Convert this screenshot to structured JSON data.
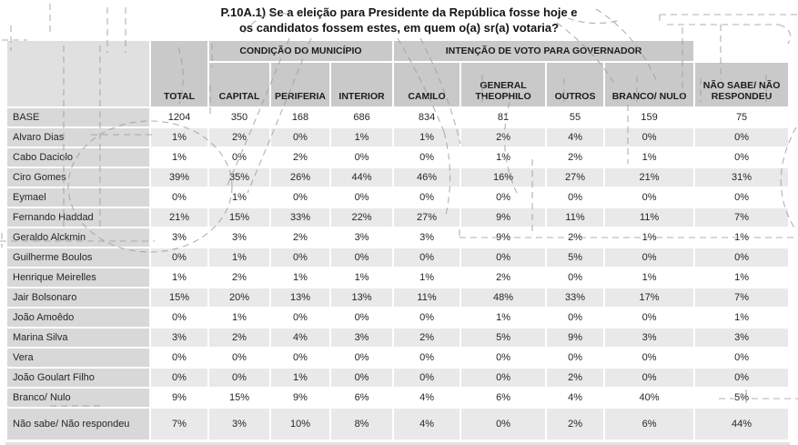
{
  "title": {
    "line1": "P.10A.1) Se a eleição para Presidente da República fosse hoje e",
    "line2": "os candidatos fossem estes, em quem o(a) sr(a) votaria?"
  },
  "table": {
    "group1": "CONDIÇÃO DO MUNICÍPIO",
    "group2": "INTENÇÃO DE VOTO PARA GOVERNADOR",
    "columns": [
      "TOTAL",
      "CAPITAL",
      "PERIFERIA",
      "INTERIOR",
      "CAMILO",
      "GENERAL THEOPHILO",
      "OUTROS",
      "BRANCO/ NULO",
      "NÃO SABE/ NÃO RESPONDEU"
    ],
    "rows": [
      {
        "label": "BASE",
        "values": [
          "1204",
          "350",
          "168",
          "686",
          "834",
          "81",
          "55",
          "159",
          "75"
        ]
      },
      {
        "label": "Alvaro Dias",
        "values": [
          "1%",
          "2%",
          "0%",
          "1%",
          "1%",
          "2%",
          "4%",
          "0%",
          "0%"
        ]
      },
      {
        "label": "Cabo Daciolo",
        "values": [
          "1%",
          "0%",
          "2%",
          "0%",
          "0%",
          "1%",
          "2%",
          "1%",
          "0%"
        ]
      },
      {
        "label": "Ciro Gomes",
        "values": [
          "39%",
          "35%",
          "26%",
          "44%",
          "46%",
          "16%",
          "27%",
          "21%",
          "31%"
        ]
      },
      {
        "label": "Eymael",
        "values": [
          "0%",
          "1%",
          "0%",
          "0%",
          "0%",
          "0%",
          "0%",
          "0%",
          "0%"
        ]
      },
      {
        "label": "Fernando Haddad",
        "values": [
          "21%",
          "15%",
          "33%",
          "22%",
          "27%",
          "9%",
          "11%",
          "11%",
          "7%"
        ]
      },
      {
        "label": "Geraldo Alckmin",
        "values": [
          "3%",
          "3%",
          "2%",
          "3%",
          "3%",
          "9%",
          "2%",
          "1%",
          "1%"
        ]
      },
      {
        "label": "Guilherme Boulos",
        "values": [
          "0%",
          "1%",
          "0%",
          "0%",
          "0%",
          "0%",
          "5%",
          "0%",
          "0%"
        ]
      },
      {
        "label": "Henrique Meirelles",
        "values": [
          "1%",
          "2%",
          "1%",
          "1%",
          "1%",
          "2%",
          "0%",
          "1%",
          "1%"
        ]
      },
      {
        "label": "Jair Bolsonaro",
        "values": [
          "15%",
          "20%",
          "13%",
          "13%",
          "11%",
          "48%",
          "33%",
          "17%",
          "7%"
        ]
      },
      {
        "label": "João Amoêdo",
        "values": [
          "0%",
          "1%",
          "0%",
          "0%",
          "0%",
          "1%",
          "0%",
          "0%",
          "1%"
        ]
      },
      {
        "label": "Marina Silva",
        "values": [
          "3%",
          "2%",
          "4%",
          "3%",
          "2%",
          "5%",
          "9%",
          "3%",
          "3%"
        ]
      },
      {
        "label": "Vera",
        "values": [
          "0%",
          "0%",
          "0%",
          "0%",
          "0%",
          "0%",
          "0%",
          "0%",
          "0%"
        ]
      },
      {
        "label": "João Goulart Filho",
        "values": [
          "0%",
          "0%",
          "1%",
          "0%",
          "0%",
          "0%",
          "2%",
          "0%",
          "0%"
        ]
      },
      {
        "label": "Branco/ Nulo",
        "values": [
          "9%",
          "15%",
          "9%",
          "6%",
          "4%",
          "6%",
          "4%",
          "40%",
          "5%"
        ]
      },
      {
        "label": "Não sabe/ Não respondeu",
        "values": [
          "7%",
          "3%",
          "10%",
          "8%",
          "4%",
          "0%",
          "2%",
          "6%",
          "44%"
        ]
      }
    ]
  },
  "colors": {
    "header_bg": "#c9c9c9",
    "corner_bg": "#e0e0e0",
    "label_bg": "#d8d8d8",
    "row_alt_bg": "#e9e9e9",
    "watermark": "#9e9e9e"
  }
}
